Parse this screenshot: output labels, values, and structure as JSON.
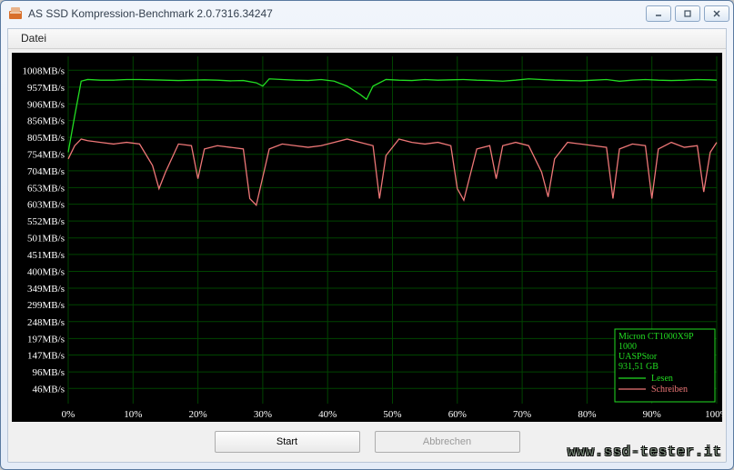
{
  "window": {
    "title": "AS SSD Kompression-Benchmark 2.0.7316.34247",
    "menu": {
      "file": "Datei"
    },
    "buttons": {
      "start": "Start",
      "cancel": "Abbrechen"
    }
  },
  "watermark": "www.ssd-tester.it",
  "device_info": {
    "lines": [
      "Micron CT1000X9P",
      "1000",
      "UASPStor",
      "931,51 GB"
    ],
    "color": "#22dd22",
    "fontsize": 10
  },
  "legend": {
    "read": {
      "label": "Lesen",
      "color": "#22dd22"
    },
    "write": {
      "label": "Schreiben",
      "color": "#ee7777"
    },
    "fontsize": 10
  },
  "chart": {
    "type": "line",
    "background": "#000000",
    "grid_color": "#004400",
    "axis_text_color": "#ffffff",
    "axis_fontsize": 11,
    "line_width": 1.3,
    "xlim": [
      0,
      100
    ],
    "xtick_step": 10,
    "xtick_suffix": "%",
    "ylim": [
      0,
      1050
    ],
    "yticks": [
      46,
      96,
      147,
      197,
      248,
      299,
      349,
      400,
      451,
      501,
      552,
      603,
      653,
      704,
      754,
      805,
      856,
      906,
      957,
      1008
    ],
    "ytick_suffix": "MB/s",
    "info_box": {
      "w": 110,
      "h": 80,
      "border_color": "#22dd22"
    },
    "series": {
      "read": {
        "color": "#22dd22",
        "x": [
          0,
          1,
          2,
          3,
          5,
          7,
          9,
          11,
          13,
          15,
          17,
          19,
          21,
          23,
          25,
          27,
          29,
          30,
          31,
          33,
          35,
          37,
          39,
          41,
          43,
          45,
          46,
          47,
          49,
          51,
          53,
          55,
          57,
          59,
          61,
          63,
          65,
          67,
          69,
          71,
          73,
          75,
          77,
          79,
          81,
          83,
          85,
          87,
          89,
          91,
          93,
          95,
          97,
          99,
          100
        ],
        "y": [
          760,
          870,
          975,
          980,
          978,
          978,
          980,
          980,
          979,
          978,
          977,
          978,
          979,
          978,
          976,
          977,
          970,
          960,
          982,
          980,
          978,
          977,
          980,
          975,
          960,
          935,
          920,
          960,
          980,
          978,
          977,
          980,
          978,
          979,
          980,
          978,
          977,
          975,
          978,
          982,
          980,
          978,
          977,
          976,
          978,
          980,
          975,
          978,
          980,
          978,
          977,
          978,
          980,
          979,
          978
        ]
      },
      "write": {
        "color": "#ee7777",
        "x": [
          0,
          1,
          2,
          3,
          5,
          7,
          9,
          11,
          13,
          14,
          15,
          17,
          19,
          20,
          21,
          23,
          25,
          27,
          28,
          29,
          31,
          33,
          35,
          37,
          39,
          41,
          43,
          45,
          47,
          48,
          49,
          51,
          53,
          55,
          57,
          59,
          60,
          61,
          63,
          65,
          66,
          67,
          69,
          71,
          73,
          74,
          75,
          77,
          79,
          81,
          83,
          84,
          85,
          87,
          89,
          90,
          91,
          93,
          95,
          97,
          98,
          99,
          100
        ],
        "y": [
          740,
          780,
          800,
          795,
          790,
          785,
          790,
          785,
          720,
          650,
          700,
          785,
          780,
          680,
          770,
          780,
          775,
          770,
          620,
          600,
          770,
          785,
          780,
          775,
          780,
          790,
          800,
          790,
          780,
          620,
          750,
          800,
          790,
          785,
          790,
          780,
          650,
          615,
          770,
          780,
          680,
          780,
          790,
          780,
          700,
          625,
          740,
          790,
          785,
          780,
          775,
          620,
          770,
          785,
          780,
          620,
          770,
          790,
          775,
          780,
          640,
          760,
          790
        ]
      }
    }
  }
}
